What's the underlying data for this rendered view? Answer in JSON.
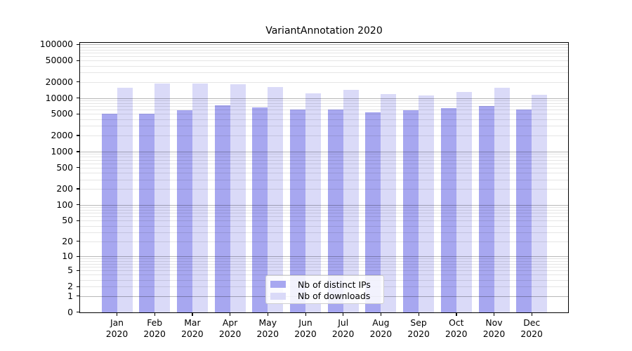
{
  "chart_data": {
    "type": "bar",
    "title": "VariantAnnotation 2020",
    "categories": [
      "Jan",
      "Feb",
      "Mar",
      "Apr",
      "May",
      "Jun",
      "Jul",
      "Aug",
      "Sep",
      "Oct",
      "Nov",
      "Dec"
    ],
    "year": "2020",
    "series": [
      {
        "name": "Nb of distinct IPs",
        "color": "#a7a7f0",
        "values": [
          5100,
          5150,
          5830,
          7280,
          6710,
          6020,
          6010,
          5330,
          5890,
          6510,
          7000,
          6020
        ]
      },
      {
        "name": "Nb of downloads",
        "color": "#dadaf8",
        "values": [
          15400,
          18400,
          18600,
          18000,
          16100,
          12300,
          14000,
          11800,
          11100,
          12900,
          15500,
          11450
        ]
      }
    ],
    "yticks": [
      0,
      1,
      2,
      5,
      10,
      20,
      50,
      100,
      200,
      500,
      1000,
      2000,
      5000,
      10000,
      20000,
      50000,
      100000
    ],
    "ylim": [
      0,
      100000
    ],
    "yscale": "log10(1+v)",
    "xlabel": "",
    "ylabel": "",
    "grid": {
      "horizontal": true,
      "major_color": "#b8b8b8",
      "minor_color": "#e6e6e6"
    },
    "legend_position": "lower center"
  }
}
